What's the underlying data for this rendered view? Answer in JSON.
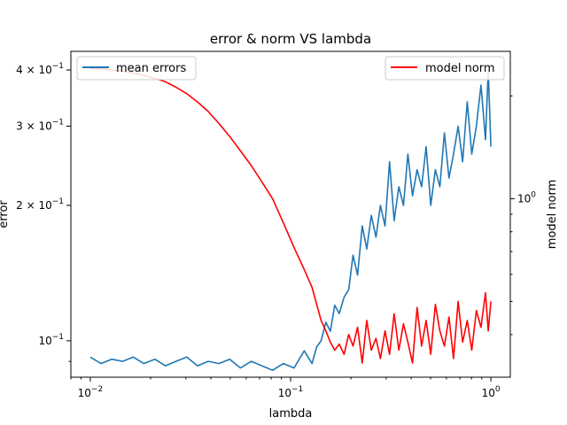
{
  "chart_data": {
    "type": "line",
    "title": "error & norm VS lambda",
    "xlabel": "lambda",
    "ylabel_left": "error",
    "ylabel_right": "model norm",
    "x_scale": "log",
    "y_left_scale": "log",
    "y_right_scale": "log",
    "xlim": [
      0.008,
      1.25
    ],
    "ylim_left": [
      0.083,
      0.44
    ],
    "ylim_right": [
      0.3,
      2.7
    ],
    "grid": false,
    "x_ticks": [
      "10^-2",
      "10^-1",
      "10^0"
    ],
    "y_left_ticks": [
      {
        "value": 0.4,
        "label": "4 × 10^-1"
      },
      {
        "value": 0.3,
        "label": "3 × 10^-1"
      },
      {
        "value": 0.2,
        "label": "2 × 10^-1"
      },
      {
        "value": 0.1,
        "label": "10^-1"
      }
    ],
    "y_right_ticks": [
      {
        "value": 1.0,
        "label": "10^0"
      }
    ],
    "legend_left": {
      "label": "mean errors",
      "position": "upper left",
      "color": "#1f77b4"
    },
    "legend_right": {
      "label": "model norm",
      "position": "upper right",
      "color": "#ff0000"
    },
    "series": [
      {
        "name": "mean errors",
        "axis": "left",
        "color": "#1f77b4",
        "x": [
          0.01,
          0.0113,
          0.0128,
          0.0145,
          0.0164,
          0.0185,
          0.021,
          0.0237,
          0.0268,
          0.0303,
          0.0343,
          0.0388,
          0.0439,
          0.0497,
          0.0562,
          0.0636,
          0.0719,
          0.0813,
          0.092,
          0.104,
          0.117,
          0.128,
          0.135,
          0.142,
          0.15,
          0.158,
          0.166,
          0.175,
          0.185,
          0.195,
          0.205,
          0.216,
          0.228,
          0.24,
          0.253,
          0.267,
          0.281,
          0.296,
          0.312,
          0.329,
          0.347,
          0.366,
          0.385,
          0.406,
          0.428,
          0.451,
          0.475,
          0.501,
          0.528,
          0.556,
          0.586,
          0.618,
          0.651,
          0.686,
          0.723,
          0.762,
          0.803,
          0.846,
          0.892,
          0.94,
          0.97,
          1.0
        ],
        "y": [
          0.092,
          0.089,
          0.091,
          0.09,
          0.092,
          0.089,
          0.091,
          0.088,
          0.09,
          0.092,
          0.088,
          0.09,
          0.089,
          0.091,
          0.087,
          0.09,
          0.088,
          0.086,
          0.089,
          0.087,
          0.095,
          0.089,
          0.097,
          0.1,
          0.11,
          0.105,
          0.12,
          0.115,
          0.125,
          0.13,
          0.155,
          0.14,
          0.18,
          0.16,
          0.19,
          0.17,
          0.2,
          0.18,
          0.25,
          0.185,
          0.22,
          0.2,
          0.26,
          0.21,
          0.24,
          0.22,
          0.27,
          0.2,
          0.24,
          0.22,
          0.29,
          0.23,
          0.26,
          0.3,
          0.25,
          0.34,
          0.26,
          0.3,
          0.37,
          0.28,
          0.4,
          0.27
        ]
      },
      {
        "name": "model norm",
        "axis": "right",
        "color": "#ff0000",
        "x": [
          0.01,
          0.0113,
          0.0128,
          0.0145,
          0.0164,
          0.0185,
          0.021,
          0.0237,
          0.0268,
          0.0303,
          0.0343,
          0.0388,
          0.0439,
          0.0497,
          0.0562,
          0.0636,
          0.0719,
          0.0813,
          0.092,
          0.104,
          0.117,
          0.128,
          0.135,
          0.142,
          0.15,
          0.158,
          0.166,
          0.175,
          0.185,
          0.195,
          0.205,
          0.216,
          0.228,
          0.24,
          0.253,
          0.267,
          0.281,
          0.296,
          0.312,
          0.329,
          0.347,
          0.366,
          0.385,
          0.406,
          0.428,
          0.451,
          0.475,
          0.501,
          0.528,
          0.556,
          0.586,
          0.618,
          0.651,
          0.686,
          0.723,
          0.762,
          0.803,
          0.846,
          0.892,
          0.94,
          0.97,
          1.0
        ],
        "y": [
          2.4,
          2.4,
          2.38,
          2.36,
          2.33,
          2.3,
          2.25,
          2.2,
          2.12,
          2.03,
          1.92,
          1.8,
          1.66,
          1.52,
          1.38,
          1.25,
          1.12,
          1.0,
          0.85,
          0.72,
          0.62,
          0.55,
          0.49,
          0.44,
          0.41,
          0.38,
          0.36,
          0.375,
          0.35,
          0.4,
          0.37,
          0.42,
          0.33,
          0.44,
          0.36,
          0.39,
          0.34,
          0.41,
          0.35,
          0.46,
          0.36,
          0.43,
          0.38,
          0.33,
          0.48,
          0.37,
          0.44,
          0.35,
          0.49,
          0.41,
          0.37,
          0.45,
          0.34,
          0.5,
          0.38,
          0.44,
          0.36,
          0.47,
          0.42,
          0.53,
          0.41,
          0.5
        ]
      }
    ]
  }
}
